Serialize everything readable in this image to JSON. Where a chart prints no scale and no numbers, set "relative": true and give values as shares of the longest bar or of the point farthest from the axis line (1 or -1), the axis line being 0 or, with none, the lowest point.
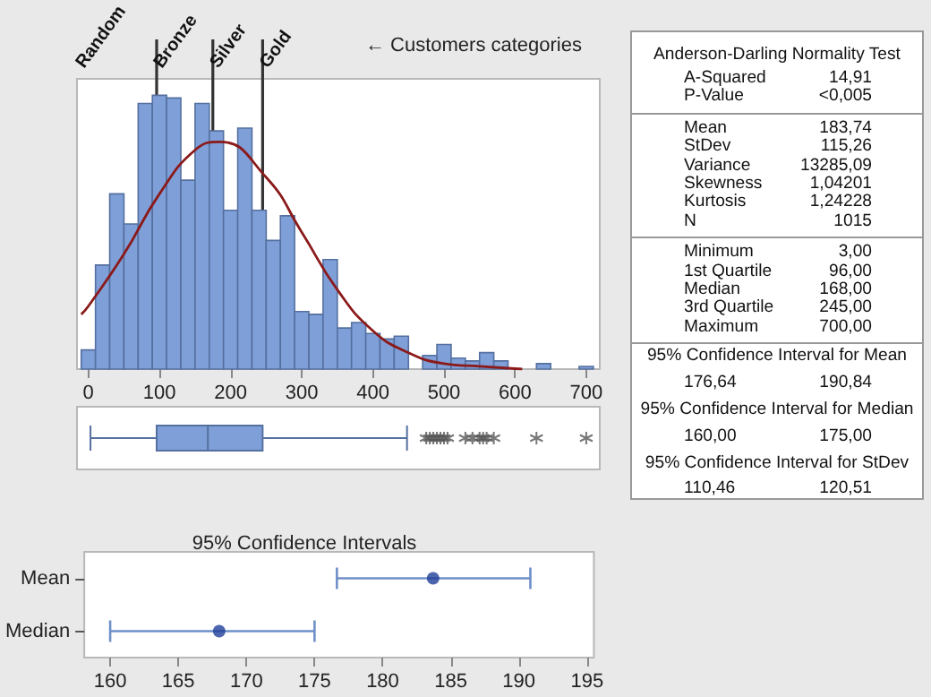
{
  "chart_data": [
    {
      "type": "histogram",
      "relative": true,
      "bins": [
        -10,
        10,
        30,
        50,
        70,
        90,
        110,
        130,
        150,
        170,
        190,
        210,
        230,
        250,
        270,
        290,
        310,
        330,
        350,
        370,
        390,
        410,
        430,
        450,
        470,
        490,
        510,
        530,
        550,
        570,
        590,
        610,
        630,
        650,
        670,
        690,
        710
      ],
      "series": [
        {
          "type": "histogram",
          "color": "#7f9fd8",
          "values": [
            0.07,
            0.38,
            0.64,
            0.53,
            0.97,
            1,
            0.99,
            0.69,
            0.97,
            0.87,
            0.58,
            0.88,
            0.58,
            0.47,
            0.56,
            0.21,
            0.2,
            0.4,
            0.15,
            0.17,
            0.13,
            0.11,
            0.12,
            0,
            0.05,
            0.09,
            0.04,
            0.03,
            0.06,
            0.03,
            0,
            0,
            0.02,
            0,
            0,
            0.01
          ]
        },
        {
          "type": "line",
          "color": "#8b1a1a",
          "x": [
            -10,
            0,
            50,
            100,
            150,
            184,
            250,
            300,
            350,
            400,
            450,
            500,
            550,
            610
          ],
          "values": [
            0.2,
            0.23,
            0.42,
            0.64,
            0.8,
            0.83,
            0.7,
            0.5,
            0.29,
            0.14,
            0.06,
            0.02,
            0.01,
            0
          ]
        }
      ],
      "marker": "none",
      "xlim": [
        -16,
        719
      ],
      "xticks": [
        0,
        100,
        200,
        300,
        400,
        500,
        600,
        700
      ],
      "ref_lines": [
        {
          "axis": "x",
          "value": 96,
          "label": "Bronze",
          "color": "#333333"
        },
        {
          "axis": "x",
          "value": 175,
          "label": "Silver",
          "color": "#333333"
        },
        {
          "axis": "x",
          "value": 245,
          "label": "Gold",
          "color": "#333333"
        }
      ],
      "annotations": [
        "Random",
        "← Customers categories"
      ]
    },
    {
      "type": "box",
      "orientation": "horizontal",
      "categories": [
        null
      ],
      "color": "#7f9fd8",
      "xlim": [
        -16,
        719
      ],
      "boxes": [
        {
          "low": 3,
          "q1": 96,
          "median": 168,
          "q3": 245,
          "high": 448,
          "outliers": [
            475,
            480,
            485,
            490,
            495,
            500,
            505,
            530,
            540,
            550,
            555,
            560,
            570,
            630,
            700
          ]
        }
      ]
    },
    {
      "type": "scatter",
      "title": "95% Confidence Intervals",
      "orientation": "horizontal",
      "categories": [
        "Mean",
        "Median"
      ],
      "values": [
        183.7,
        168
      ],
      "errors": [
        [
          176.64,
          190.84
        ],
        [
          160,
          175
        ]
      ],
      "color": "#1f3f99",
      "marker": "circle",
      "xlim": [
        158.1,
        195.5
      ],
      "xticks": [
        160,
        165,
        170,
        175,
        180,
        185,
        190,
        195
      ]
    },
    {
      "type": "other",
      "title": "Anderson-Darling Normality Test",
      "annotations": [
        "A-Squared",
        "14,91",
        "P-Value",
        "<0,005",
        "Mean",
        "183,74",
        "StDev",
        "115,26",
        "Variance",
        "13285,09",
        "Skewness",
        "1,04201",
        "Kurtosis",
        "1,24228",
        "N",
        "1015",
        "Minimum",
        "3,00",
        "1st Quartile",
        "96,00",
        "Median",
        "168,00",
        "3rd Quartile",
        "245,00",
        "Maximum",
        "700,00",
        "95% Confidence Interval for Mean",
        "176,64",
        "190,84",
        "95% Confidence Interval for Median",
        "160,00",
        "175,00",
        "95% Confidence Interval for StDev",
        "110,46",
        "120,51"
      ]
    }
  ]
}
